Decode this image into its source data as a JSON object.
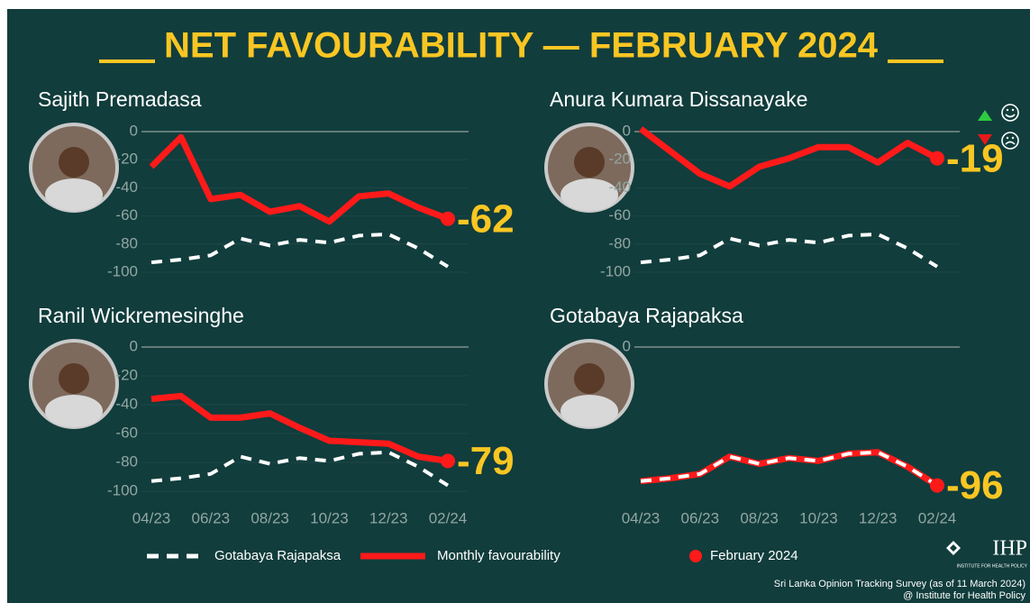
{
  "title": "NET FAVOURABILITY — FEBRUARY 2024",
  "marker_label": "February 2024",
  "source": "Sri Lanka Opinion Tracking Survey (as of 11 March 2024)",
  "credit": "@ Institute for Health Policy",
  "logo": "IHP",
  "logo_sub": "INSTITUTE FOR HEALTH POLICY",
  "chart_data": [
    {
      "type": "line",
      "title": "Sajith Premadasa",
      "ylim": [
        -105,
        5
      ],
      "yticks": [
        0,
        -20,
        -40,
        -60,
        -80,
        -100
      ],
      "grid": true,
      "series": [
        {
          "name": "Monthly favourability",
          "color": "#ff1a1a",
          "values": [
            -25,
            -4,
            -48,
            -45,
            -57,
            -53,
            -64,
            -46,
            -44,
            -54,
            -62
          ]
        },
        {
          "name": "Gotabaya Rajapaksa",
          "color": "#ffffff",
          "dash": true,
          "values": [
            -93,
            -91,
            -88,
            -76,
            -81,
            -77,
            -79,
            -74,
            -73,
            -83,
            -96
          ]
        }
      ]
    },
    {
      "type": "line",
      "title": "Anura Kumara Dissanayake",
      "ylim": [
        -105,
        5
      ],
      "yticks": [
        0,
        -20,
        -40,
        -60,
        -80,
        -100
      ],
      "grid": true,
      "series": [
        {
          "name": "Monthly favourability",
          "color": "#ff1a1a",
          "values": [
            2,
            -14,
            -30,
            -39,
            -25,
            -19,
            -11,
            -11,
            -22,
            -8,
            -19
          ]
        },
        {
          "name": "Gotabaya Rajapaksa",
          "color": "#ffffff",
          "dash": true,
          "values": [
            -93,
            -91,
            -88,
            -76,
            -81,
            -77,
            -79,
            -74,
            -73,
            -83,
            -96
          ]
        }
      ]
    },
    {
      "type": "line",
      "title": "Ranil Wickremesinghe",
      "ylim": [
        -105,
        5
      ],
      "yticks": [
        0,
        -20,
        -40,
        -60,
        -80,
        -100
      ],
      "grid": true,
      "categories": [
        "04/23",
        null,
        "06/23",
        null,
        "08/23",
        null,
        "10/23",
        null,
        "12/23",
        null,
        "02/24"
      ],
      "series": [
        {
          "name": "Monthly favourability",
          "color": "#ff1a1a",
          "values": [
            -36,
            -34,
            -49,
            -49,
            -46,
            -56,
            -65,
            -66,
            -67,
            -76,
            -79
          ]
        },
        {
          "name": "Gotabaya Rajapaksa",
          "color": "#ffffff",
          "dash": true,
          "values": [
            -93,
            -91,
            -88,
            -76,
            -81,
            -77,
            -79,
            -74,
            -73,
            -83,
            -96
          ]
        }
      ]
    },
    {
      "type": "line",
      "title": "Gotabaya Rajapaksa",
      "ylim": [
        -105,
        5
      ],
      "yticks": [
        0
      ],
      "grid": true,
      "categories": [
        "04/23",
        null,
        "06/23",
        null,
        "08/23",
        null,
        "10/23",
        null,
        "12/23",
        null,
        "02/24"
      ],
      "series": [
        {
          "name": "Monthly favourability",
          "color": "#ff1a1a",
          "values": [
            -93,
            -91,
            -88,
            -76,
            -81,
            -77,
            -79,
            -74,
            -73,
            -83,
            -96
          ]
        },
        {
          "name": "Gotabaya Rajapaksa",
          "color": "#ffffff",
          "dash": true,
          "values": [
            -93,
            -91,
            -88,
            -76,
            -81,
            -77,
            -79,
            -74,
            -73,
            -83,
            -96
          ]
        }
      ]
    }
  ]
}
